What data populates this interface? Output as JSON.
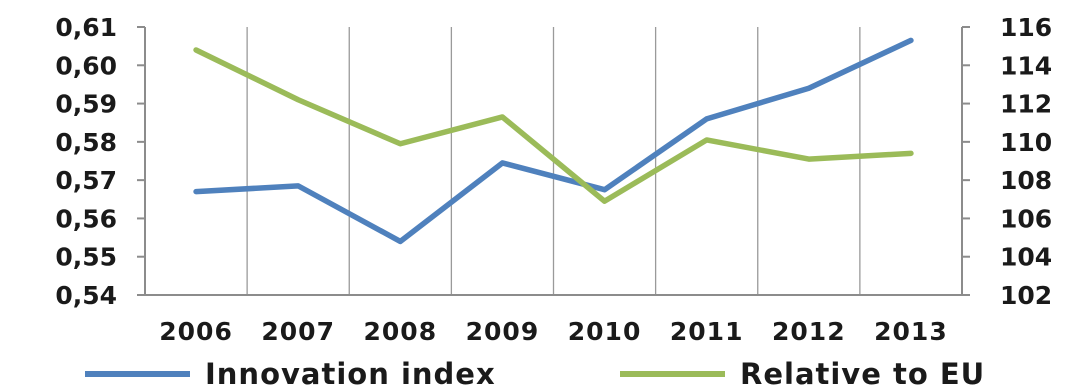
{
  "chart_data": {
    "type": "line",
    "title": "",
    "xlabel": "",
    "ylabel": "",
    "categories": [
      "2006",
      "2007",
      "2008",
      "2009",
      "2010",
      "2011",
      "2012",
      "2013"
    ],
    "series": [
      {
        "name": "Innovation index",
        "axis": "left",
        "color": "#4f81bd",
        "values": [
          0.567,
          0.5685,
          0.554,
          0.5745,
          0.5675,
          0.586,
          0.594,
          0.6065
        ]
      },
      {
        "name": "Relative to EU",
        "axis": "right",
        "color": "#9bbb59",
        "values": [
          114.8,
          112.2,
          109.9,
          111.3,
          106.9,
          110.1,
          109.1,
          109.4
        ]
      }
    ],
    "y_left": {
      "ylim": [
        0.54,
        0.61
      ],
      "ticks": [
        "0,54",
        "0,55",
        "0,56",
        "0,57",
        "0,58",
        "0,59",
        "0,60",
        "0,61"
      ]
    },
    "y_right": {
      "ylim": [
        102,
        116
      ],
      "ticks": [
        "102",
        "104",
        "106",
        "108",
        "110",
        "112",
        "114",
        "116"
      ]
    },
    "grid": "vertical",
    "legend": "bottom"
  }
}
